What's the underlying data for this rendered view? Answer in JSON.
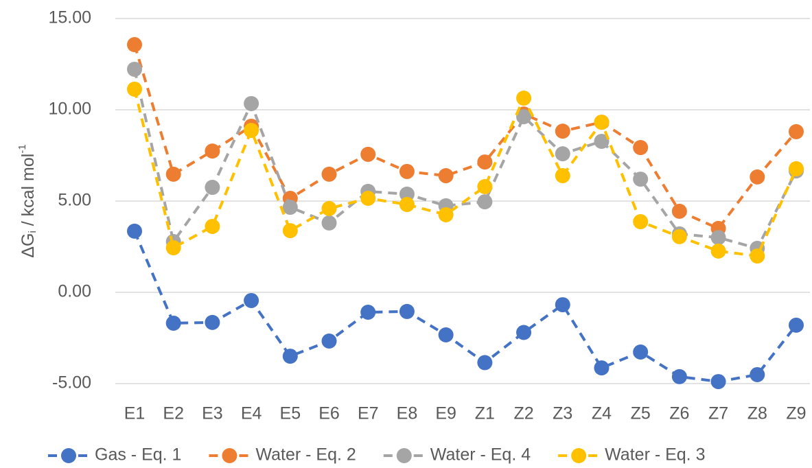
{
  "chart_data": {
    "type": "line",
    "ylabel": {
      "main": "ΔG",
      "sub": "i",
      "unit": " / kcal mol",
      "sup": "-1"
    },
    "categories": [
      "E1",
      "E2",
      "E3",
      "E4",
      "E5",
      "E6",
      "E7",
      "E8",
      "E9",
      "Z1",
      "Z2",
      "Z3",
      "Z4",
      "Z5",
      "Z6",
      "Z7",
      "Z8",
      "Z9"
    ],
    "series": [
      {
        "name": "Gas - Eq. 1",
        "color": "#4472c4",
        "values": [
          3.35,
          -1.69,
          -1.65,
          -0.45,
          -3.5,
          -2.67,
          -1.09,
          -1.05,
          -2.33,
          -3.85,
          -2.2,
          -0.68,
          -4.14,
          -3.27,
          -4.62,
          -4.89,
          -4.51,
          -1.8
        ]
      },
      {
        "name": "Water - Eq. 2",
        "color": "#ed7d31",
        "values": [
          13.57,
          6.47,
          7.74,
          9.1,
          5.15,
          6.47,
          7.56,
          6.62,
          6.39,
          7.14,
          9.77,
          8.83,
          9.32,
          7.93,
          4.44,
          3.5,
          6.32,
          8.8
        ]
      },
      {
        "name": "Water - Eq. 4",
        "color": "#a5a5a5",
        "values": [
          12.22,
          2.78,
          5.75,
          10.34,
          4.66,
          3.8,
          5.53,
          5.38,
          4.74,
          4.96,
          9.62,
          7.59,
          8.27,
          6.2,
          3.2,
          3.0,
          2.41,
          6.65
        ]
      },
      {
        "name": "Water - Eq. 3",
        "color": "#ffc000",
        "values": [
          11.13,
          2.44,
          3.61,
          8.87,
          3.38,
          4.59,
          5.15,
          4.81,
          4.25,
          5.79,
          10.64,
          6.39,
          9.32,
          3.87,
          3.05,
          2.26,
          1.99,
          6.77
        ]
      }
    ],
    "ylim": [
      -5,
      15
    ],
    "yticks": [
      {
        "value": -5,
        "label": "-5.00"
      },
      {
        "value": 0,
        "label": "0.00"
      },
      {
        "value": 5,
        "label": "5.00"
      },
      {
        "value": 10,
        "label": "10.00"
      },
      {
        "value": 15,
        "label": "15.00"
      }
    ],
    "grid": true,
    "legend": "bottom"
  }
}
